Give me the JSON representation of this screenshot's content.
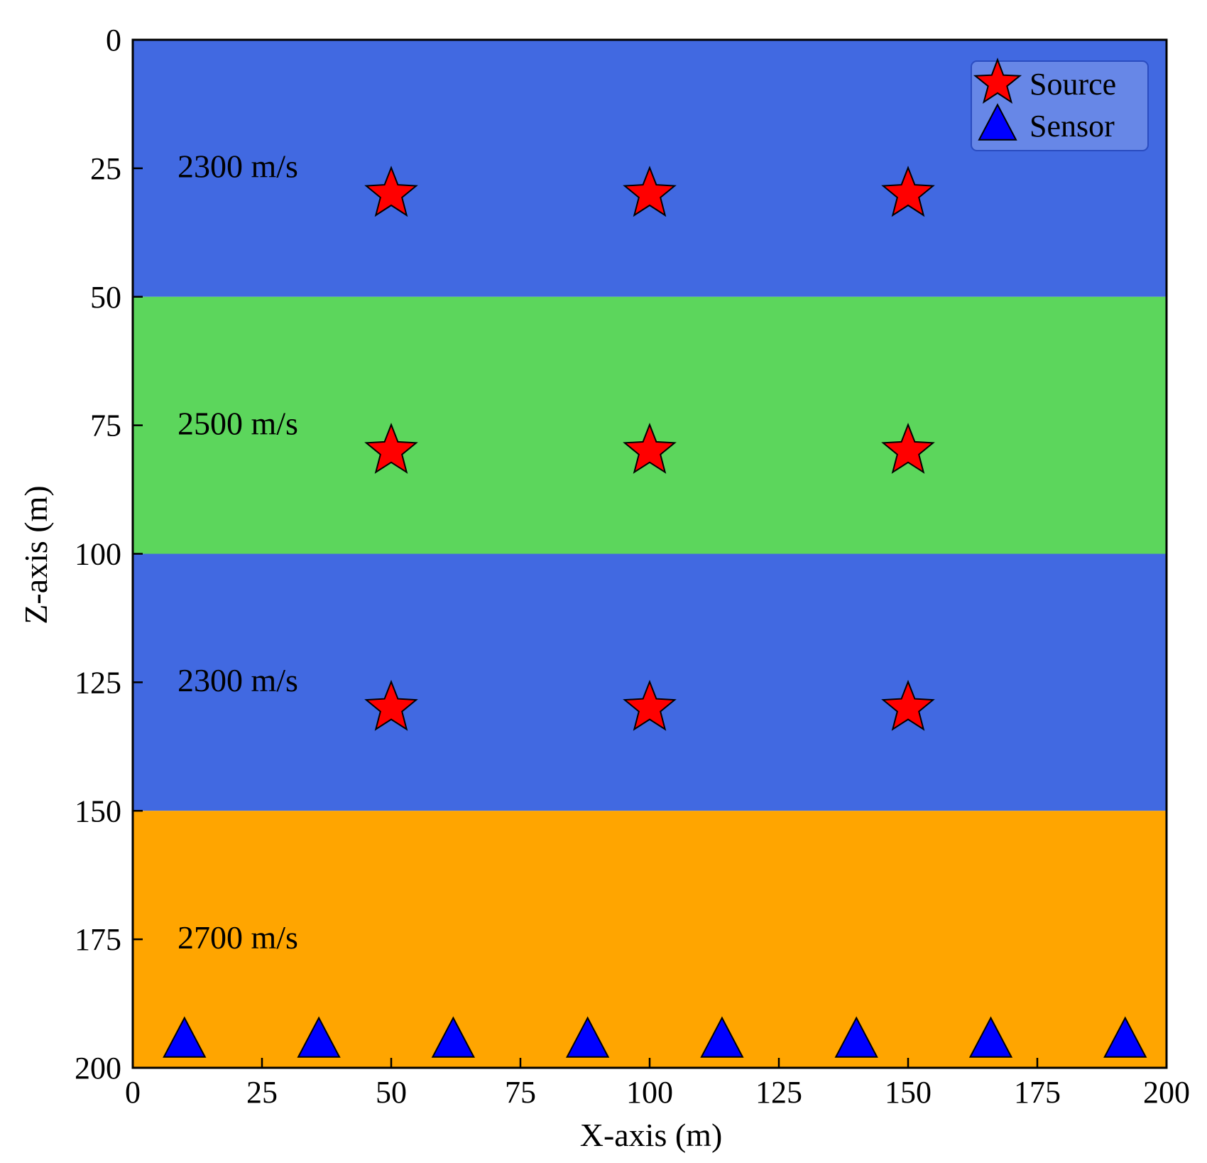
{
  "chart_data": {
    "type": "scatter",
    "xlabel": "X-axis (m)",
    "ylabel": "Z-axis (m)",
    "xlim": [
      0,
      200
    ],
    "ylim": [
      0,
      200
    ],
    "y_inverted": true,
    "x_ticks": [
      0,
      25,
      50,
      75,
      100,
      125,
      150,
      175,
      200
    ],
    "y_ticks": [
      0,
      25,
      50,
      75,
      100,
      125,
      150,
      175,
      200
    ],
    "grid": false,
    "legend_position": "top-right",
    "layers": [
      {
        "z_top": 0,
        "z_bottom": 50,
        "label": "2300 m/s",
        "color": "#4169E1"
      },
      {
        "z_top": 50,
        "z_bottom": 100,
        "label": "2500 m/s",
        "color": "#5CD65C"
      },
      {
        "z_top": 100,
        "z_bottom": 150,
        "label": "2300 m/s",
        "color": "#4169E1"
      },
      {
        "z_top": 150,
        "z_bottom": 200,
        "label": "2700 m/s",
        "color": "#FFA500"
      }
    ],
    "series": [
      {
        "name": "Source",
        "marker": "star",
        "color": "#FF0000",
        "points": [
          {
            "x": 50,
            "z": 30
          },
          {
            "x": 100,
            "z": 30
          },
          {
            "x": 150,
            "z": 30
          },
          {
            "x": 50,
            "z": 80
          },
          {
            "x": 100,
            "z": 80
          },
          {
            "x": 150,
            "z": 80
          },
          {
            "x": 50,
            "z": 130
          },
          {
            "x": 100,
            "z": 130
          },
          {
            "x": 150,
            "z": 130
          }
        ]
      },
      {
        "name": "Sensor",
        "marker": "triangle",
        "color": "#0000FF",
        "points": [
          {
            "x": 10,
            "z": 195
          },
          {
            "x": 36,
            "z": 195
          },
          {
            "x": 62,
            "z": 195
          },
          {
            "x": 88,
            "z": 195
          },
          {
            "x": 114,
            "z": 195
          },
          {
            "x": 140,
            "z": 195
          },
          {
            "x": 166,
            "z": 195
          },
          {
            "x": 192,
            "z": 195
          }
        ]
      }
    ]
  }
}
